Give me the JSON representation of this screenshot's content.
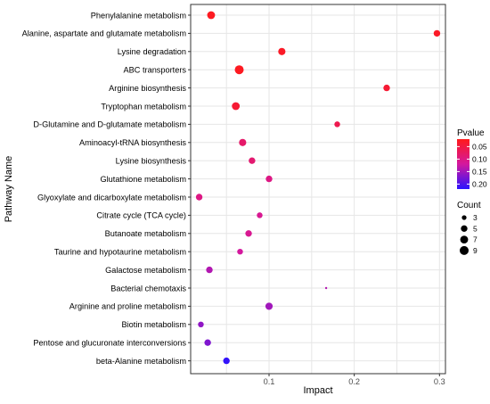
{
  "chart_data": {
    "type": "scatter",
    "xlabel": "Impact",
    "ylabel": "Pathway Name",
    "xlim": [
      0.008,
      0.307
    ],
    "x_ticks": [
      0.1,
      0.2,
      0.3
    ],
    "x_tick_labels": [
      "0.1",
      "0.2",
      "0.3"
    ],
    "grid": true,
    "pathways_top_to_bottom": [
      "Phenylalanine metabolism",
      "Alanine, aspartate and glutamate metabolism",
      "Lysine degradation",
      "ABC transporters",
      "Arginine biosynthesis",
      "Tryptophan metabolism",
      "D-Glutamine and D-glutamate metabolism",
      "Aminoacyl-tRNA biosynthesis",
      "Lysine biosynthesis",
      "Glutathione metabolism",
      "Glyoxylate and dicarboxylate metabolism",
      "Citrate cycle (TCA cycle)",
      "Butanoate metabolism",
      "Taurine and hypotaurine metabolism",
      "Galactose metabolism",
      "Bacterial chemotaxis",
      "Arginine and proline metabolism",
      "Biotin metabolism",
      "Pentose and glucuronate interconversions",
      "beta-Alanine metabolism"
    ],
    "points": [
      {
        "pathway": "Phenylalanine metabolism",
        "impact": 0.032,
        "pvalue": 0.025,
        "count": 7
      },
      {
        "pathway": "Alanine, aspartate and glutamate metabolism",
        "impact": 0.297,
        "pvalue": 0.03,
        "count": 5
      },
      {
        "pathway": "Lysine degradation",
        "impact": 0.115,
        "pvalue": 0.03,
        "count": 6
      },
      {
        "pathway": "ABC transporters",
        "impact": 0.065,
        "pvalue": 0.025,
        "count": 9
      },
      {
        "pathway": "Arginine biosynthesis",
        "impact": 0.238,
        "pvalue": 0.04,
        "count": 5
      },
      {
        "pathway": "Tryptophan metabolism",
        "impact": 0.061,
        "pvalue": 0.04,
        "count": 7
      },
      {
        "pathway": "D-Glutamine and D-glutamate metabolism",
        "impact": 0.18,
        "pvalue": 0.06,
        "count": 4
      },
      {
        "pathway": "Aminoacyl-tRNA biosynthesis",
        "impact": 0.069,
        "pvalue": 0.08,
        "count": 6
      },
      {
        "pathway": "Lysine biosynthesis",
        "impact": 0.08,
        "pvalue": 0.085,
        "count": 5
      },
      {
        "pathway": "Glutathione metabolism",
        "impact": 0.1,
        "pvalue": 0.1,
        "count": 5
      },
      {
        "pathway": "Glyoxylate and dicarboxylate metabolism",
        "impact": 0.018,
        "pvalue": 0.1,
        "count": 5
      },
      {
        "pathway": "Citrate cycle (TCA cycle)",
        "impact": 0.089,
        "pvalue": 0.11,
        "count": 4
      },
      {
        "pathway": "Butanoate metabolism",
        "impact": 0.076,
        "pvalue": 0.11,
        "count": 5
      },
      {
        "pathway": "Taurine and hypotaurine metabolism",
        "impact": 0.066,
        "pvalue": 0.12,
        "count": 4
      },
      {
        "pathway": "Galactose metabolism",
        "impact": 0.03,
        "pvalue": 0.14,
        "count": 5
      },
      {
        "pathway": "Bacterial chemotaxis",
        "impact": 0.167,
        "pvalue": 0.14,
        "count": 2
      },
      {
        "pathway": "Arginine and proline metabolism",
        "impact": 0.1,
        "pvalue": 0.15,
        "count": 6
      },
      {
        "pathway": "Biotin metabolism",
        "impact": 0.02,
        "pvalue": 0.16,
        "count": 4
      },
      {
        "pathway": "Pentose and glucuronate interconversions",
        "impact": 0.028,
        "pvalue": 0.17,
        "count": 5
      },
      {
        "pathway": "beta-Alanine metabolism",
        "impact": 0.05,
        "pvalue": 0.215,
        "count": 5
      }
    ],
    "legend": {
      "position": "right",
      "pvalue": {
        "title": "Pvalue",
        "ticks": [
          0.05,
          0.1,
          0.15,
          0.2
        ],
        "tick_labels": [
          "0.05",
          "0.10",
          "0.15",
          "0.20"
        ],
        "range": [
          0.02,
          0.22
        ],
        "low_color": "#ff1a1a",
        "mid_color": "#d4189e",
        "high_color": "#2b13ff"
      },
      "count": {
        "title": "Count",
        "values": [
          3,
          5,
          7,
          9
        ],
        "labels": [
          "3",
          "5",
          "7",
          "9"
        ]
      }
    },
    "colors": {
      "panel_background": "#ffffff",
      "grid": "#e6e6e6",
      "axis_text": "#000000",
      "tick_label": "#4d4d4d"
    }
  }
}
